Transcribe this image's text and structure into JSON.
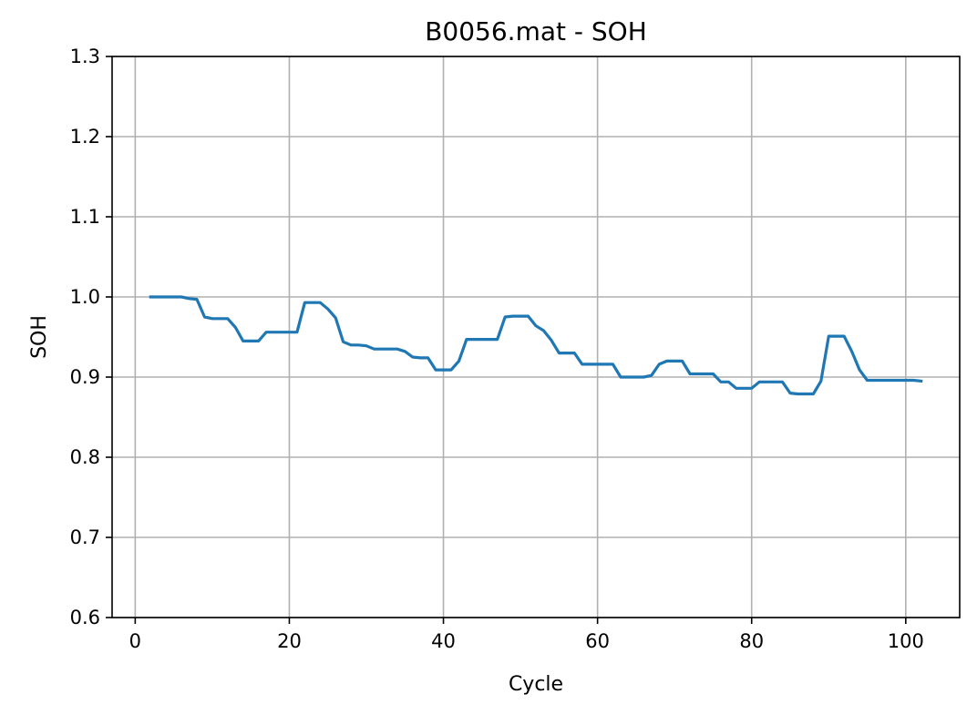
{
  "chart_data": {
    "type": "line",
    "title": "B0056.mat - SOH",
    "xlabel": "Cycle",
    "ylabel": "SOH",
    "xlim": [
      -3,
      107
    ],
    "ylim": [
      0.6,
      1.3
    ],
    "xticks": [
      0,
      20,
      40,
      60,
      80,
      100
    ],
    "yticks": [
      0.6,
      0.7,
      0.8,
      0.9,
      1.0,
      1.1,
      1.2,
      1.3
    ],
    "xtick_labels": [
      "0",
      "20",
      "40",
      "60",
      "80",
      "100"
    ],
    "ytick_labels": [
      "0.6",
      "0.7",
      "0.8",
      "0.9",
      "1.0",
      "1.1",
      "1.2",
      "1.3"
    ],
    "grid": true,
    "series": [
      {
        "color": "#1f77b4",
        "x": [
          2,
          3,
          4,
          5,
          6,
          7,
          8,
          9,
          10,
          11,
          12,
          13,
          14,
          15,
          16,
          17,
          18,
          19,
          20,
          21,
          22,
          23,
          24,
          25,
          26,
          27,
          28,
          29,
          30,
          31,
          32,
          33,
          34,
          35,
          36,
          37,
          38,
          39,
          40,
          41,
          42,
          43,
          44,
          45,
          46,
          47,
          48,
          49,
          50,
          51,
          52,
          53,
          54,
          55,
          56,
          57,
          58,
          59,
          60,
          61,
          62,
          63,
          64,
          65,
          66,
          67,
          68,
          69,
          70,
          71,
          72,
          73,
          74,
          75,
          76,
          77,
          78,
          79,
          80,
          81,
          82,
          83,
          84,
          85,
          86,
          87,
          88,
          89,
          90,
          91,
          92,
          93,
          94,
          95,
          96,
          97,
          98,
          99,
          100,
          101,
          102
        ],
        "y": [
          1.0,
          1.0,
          1.0,
          1.0,
          1.0,
          0.998,
          0.997,
          0.975,
          0.973,
          0.973,
          0.973,
          0.962,
          0.945,
          0.945,
          0.945,
          0.956,
          0.956,
          0.956,
          0.956,
          0.956,
          0.993,
          0.993,
          0.993,
          0.985,
          0.974,
          0.944,
          0.94,
          0.94,
          0.939,
          0.935,
          0.935,
          0.935,
          0.935,
          0.932,
          0.925,
          0.924,
          0.924,
          0.909,
          0.909,
          0.909,
          0.92,
          0.947,
          0.947,
          0.947,
          0.947,
          0.947,
          0.975,
          0.976,
          0.976,
          0.976,
          0.964,
          0.958,
          0.946,
          0.93,
          0.93,
          0.93,
          0.916,
          0.916,
          0.916,
          0.916,
          0.916,
          0.9,
          0.9,
          0.9,
          0.9,
          0.902,
          0.916,
          0.92,
          0.92,
          0.92,
          0.904,
          0.904,
          0.904,
          0.904,
          0.894,
          0.894,
          0.886,
          0.886,
          0.886,
          0.894,
          0.894,
          0.894,
          0.894,
          0.88,
          0.879,
          0.879,
          0.879,
          0.895,
          0.951,
          0.951,
          0.951,
          0.932,
          0.909,
          0.896,
          0.896,
          0.896,
          0.896,
          0.896,
          0.896,
          0.896,
          0.895
        ]
      }
    ]
  }
}
